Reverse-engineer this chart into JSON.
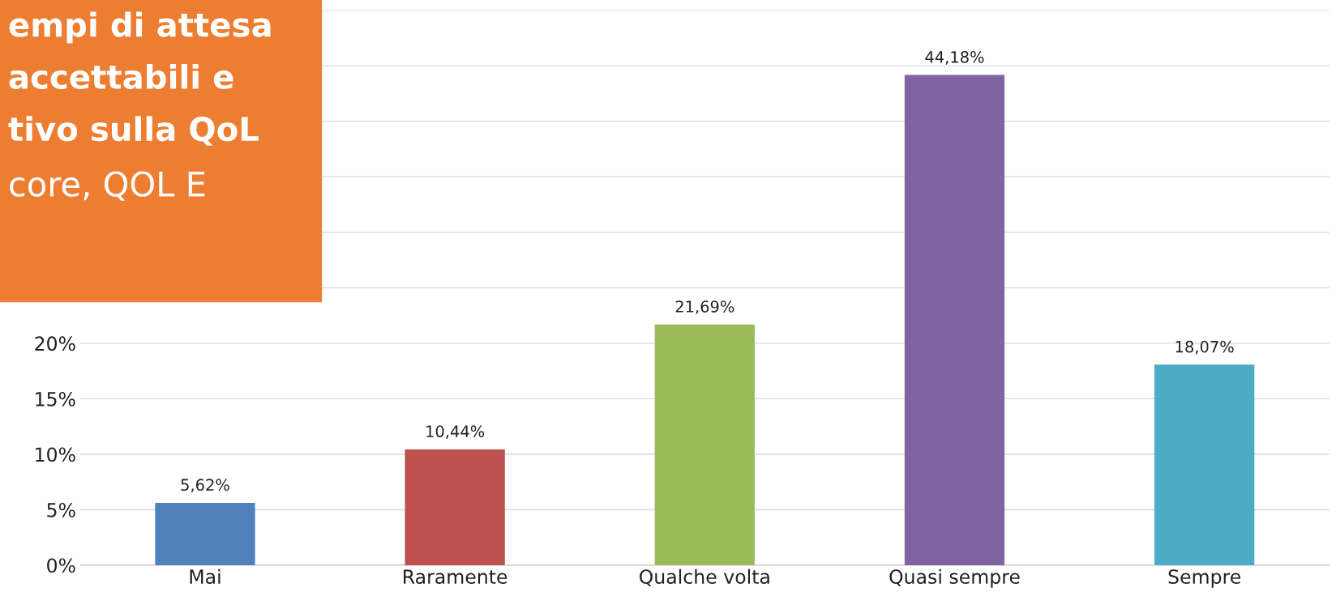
{
  "chart_data": {
    "type": "bar",
    "categories": [
      "Mai",
      "Raramente",
      "Qualche volta",
      "Quasi sempre",
      "Sempre"
    ],
    "values": [
      5.62,
      10.44,
      21.69,
      44.18,
      18.07
    ],
    "colors": [
      "#4f81bd",
      "#c0504d",
      "#9bbb59",
      "#8064a2",
      "#4bacc6"
    ],
    "value_labels": [
      "5,62%",
      "10,44%",
      "21,69%",
      "44,18%",
      "18,07%"
    ],
    "ylim": [
      0,
      50
    ],
    "yticks": [
      {
        "value": 0,
        "label": "0%"
      },
      {
        "value": 5,
        "label": "5%"
      },
      {
        "value": 10,
        "label": "10%"
      },
      {
        "value": 15,
        "label": "15%"
      },
      {
        "value": 20,
        "label": "20%"
      },
      {
        "value": 25,
        "label": null
      },
      {
        "value": 30,
        "label": null
      },
      {
        "value": 35,
        "label": null
      },
      {
        "value": 40,
        "label": null
      },
      {
        "value": 45,
        "label": null
      },
      {
        "value": 50,
        "label": null
      }
    ],
    "grid": "y",
    "annotations": [
      "empi di attesa",
      "accettabili e",
      "tivo sulla QoL",
      "core, QOL E"
    ]
  }
}
